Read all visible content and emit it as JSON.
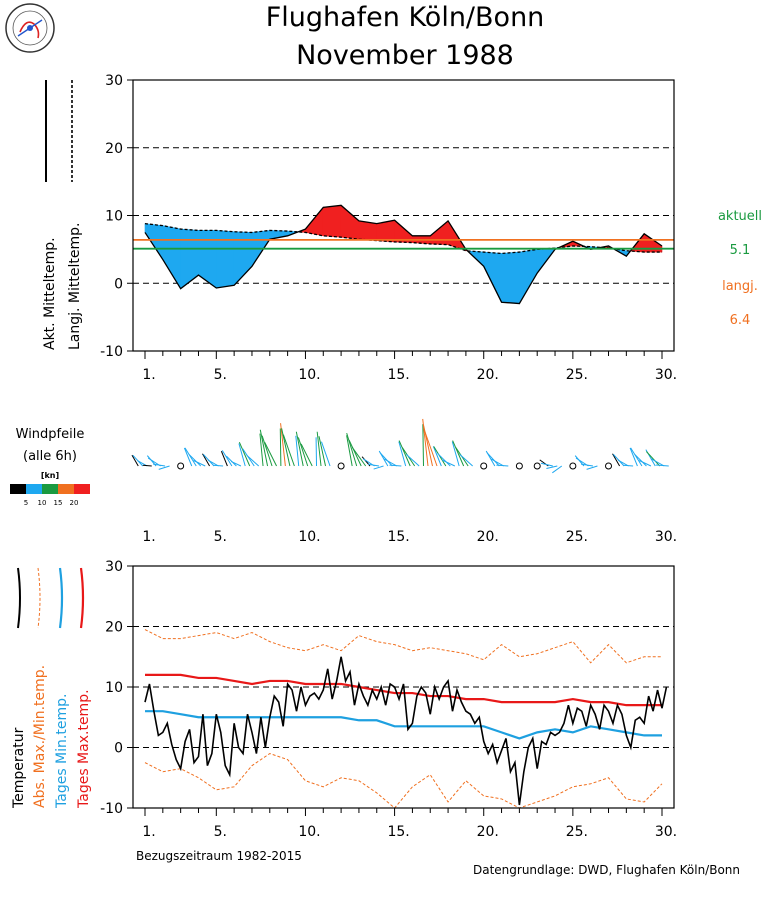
{
  "title": {
    "line1": "Flughafen Köln/Bonn",
    "line2": "November  1988"
  },
  "colors": {
    "cold_fill": "#1EA8F0",
    "warm_fill": "#F02020",
    "aktuell": "#1A9A40",
    "langj": "#F07020",
    "abs_extreme": "#F07020",
    "tages_min": "#1EA0E0",
    "tages_max": "#E81818",
    "temperature": "#000000"
  },
  "legend_top": {
    "akt_label": "Akt. Mitteltemp.",
    "langj_label": "Langj. Mitteltemp."
  },
  "side_values": {
    "aktuell_label": "aktuell",
    "aktuell_value": "5.1",
    "langj_label": "langj.",
    "langj_value": "6.4"
  },
  "wind": {
    "title_line1": "Windpfeile",
    "title_line2": "(alle 6h)",
    "unit": "[kn]",
    "scale_labels": [
      "5",
      "10",
      "15",
      "20"
    ],
    "scale_colors": [
      "#000000",
      "#1EA8F0",
      "#1A9A40",
      "#F07020",
      "#F02020"
    ]
  },
  "legend_bottom": {
    "temperatur": "Temperatur",
    "abs": "Abs. Max./Min.temp.",
    "tmin": "Tages Min.temp.",
    "tmax": "Tages Max.temp."
  },
  "footer": {
    "reference": "Bezugszeitraum 1982-2015",
    "source": "Datengrundlage: DWD, Flughafen Köln/Bonn"
  },
  "chart_data": [
    {
      "type": "area",
      "name": "Tagesmitteltemperatur",
      "x": [
        1,
        2,
        3,
        4,
        5,
        6,
        7,
        8,
        9,
        10,
        11,
        12,
        13,
        14,
        15,
        16,
        17,
        18,
        19,
        20,
        21,
        22,
        23,
        24,
        25,
        26,
        27,
        28,
        29,
        30
      ],
      "series": [
        {
          "name": "Akt. Mitteltemp.",
          "values": [
            7.5,
            3.5,
            -0.8,
            1.2,
            -0.7,
            -0.3,
            2.5,
            6.5,
            7.0,
            8.0,
            11.2,
            11.5,
            9.2,
            8.8,
            9.3,
            7.0,
            7.0,
            9.2,
            5.0,
            2.5,
            -2.8,
            -3.0,
            1.5,
            5.0,
            6.2,
            5.0,
            5.5,
            4.0,
            7.3,
            5.5
          ]
        },
        {
          "name": "Langj. Mitteltemp.",
          "values": [
            8.8,
            8.5,
            8.0,
            7.8,
            7.8,
            7.6,
            7.5,
            7.8,
            7.7,
            7.5,
            7.0,
            6.8,
            6.5,
            6.3,
            6.1,
            6.0,
            5.8,
            5.7,
            4.8,
            4.6,
            4.4,
            4.6,
            5.0,
            5.2,
            5.5,
            5.4,
            5.2,
            4.8,
            4.6,
            4.6
          ]
        }
      ],
      "xticks": [
        "1.",
        "5.",
        "10.",
        "15.",
        "20.",
        "25.",
        "30."
      ],
      "yticks": [
        "-10",
        "0",
        "10",
        "20",
        "30"
      ],
      "ylim": [
        -10,
        30
      ],
      "reference_lines": [
        {
          "label": "aktuell",
          "value": 5.1
        },
        {
          "label": "langj.",
          "value": 6.4
        }
      ],
      "grid": "dashed horizontal"
    },
    {
      "type": "scatter",
      "name": "Windpfeile",
      "x": [
        1,
        2,
        3,
        4,
        5,
        6,
        7,
        8,
        9,
        10,
        11,
        12,
        13,
        14,
        15,
        16,
        17,
        18,
        19,
        20,
        21,
        22,
        23,
        24,
        25,
        26,
        27,
        28,
        29,
        30
      ],
      "speed_kn": [
        5,
        7,
        0,
        8,
        6,
        6,
        9,
        12,
        14,
        11,
        10,
        0,
        12,
        6,
        8,
        10,
        16,
        9,
        10,
        0,
        8,
        0,
        0,
        6,
        0,
        7,
        0,
        6,
        8,
        9
      ],
      "direction_deg": [
        250,
        260,
        0,
        240,
        250,
        240,
        230,
        210,
        200,
        210,
        200,
        0,
        220,
        260,
        250,
        230,
        200,
        240,
        230,
        0,
        250,
        0,
        0,
        270,
        0,
        260,
        0,
        250,
        240,
        250
      ],
      "xticks": [
        "1.",
        "5.",
        "10.",
        "15.",
        "20.",
        "25.",
        "30."
      ]
    },
    {
      "type": "line",
      "name": "Temperatur",
      "x_temp": [
        1,
        1.25,
        1.5,
        1.75,
        2,
        2.25,
        2.5,
        2.75,
        3,
        3.25,
        3.5,
        3.75,
        4,
        4.25,
        4.5,
        4.75,
        5,
        5.25,
        5.5,
        5.75,
        6,
        6.25,
        6.5,
        6.75,
        7,
        7.25,
        7.5,
        7.75,
        8,
        8.25,
        8.5,
        8.75,
        9,
        9.25,
        9.5,
        9.75,
        10,
        10.25,
        10.5,
        10.75,
        11,
        11.25,
        11.5,
        11.75,
        12,
        12.25,
        12.5,
        12.75,
        13,
        13.25,
        13.5,
        13.75,
        14,
        14.25,
        14.5,
        14.75,
        15,
        15.25,
        15.5,
        15.75,
        16,
        16.25,
        16.5,
        16.75,
        17,
        17.25,
        17.5,
        17.75,
        18,
        18.25,
        18.5,
        18.75,
        19,
        19.25,
        19.5,
        19.75,
        20,
        20.25,
        20.5,
        20.75,
        21,
        21.25,
        21.5,
        21.75,
        22,
        22.25,
        22.5,
        22.75,
        23,
        23.25,
        23.5,
        23.75,
        24,
        24.25,
        24.5,
        24.75,
        25,
        25.25,
        25.5,
        25.75,
        26,
        26.25,
        26.5,
        26.75,
        27,
        27.25,
        27.5,
        27.75,
        28,
        28.25,
        28.5,
        28.75,
        29,
        29.25,
        29.5,
        29.75,
        30,
        30.25
      ],
      "temperature": [
        7.5,
        10.5,
        6.0,
        2.0,
        2.5,
        4.0,
        0.5,
        -2.0,
        -3.5,
        1.0,
        3.0,
        -2.5,
        -1.5,
        5.5,
        -3.0,
        -1.0,
        5.5,
        2.5,
        -3.0,
        -4.5,
        4.0,
        0.0,
        -1.0,
        5.5,
        2.5,
        -1.0,
        5.0,
        0.0,
        5.0,
        8.5,
        7.5,
        3.5,
        10.5,
        9.5,
        6.0,
        10.0,
        7.0,
        8.5,
        9.0,
        8.0,
        9.5,
        13.0,
        8.0,
        11.0,
        15.0,
        11.0,
        12.5,
        7.0,
        10.5,
        8.5,
        7.0,
        9.5,
        8.0,
        10.0,
        7.0,
        10.5,
        10.0,
        8.0,
        10.5,
        3.0,
        4.0,
        8.5,
        10.0,
        9.0,
        5.5,
        10.0,
        8.0,
        10.0,
        11.0,
        6.0,
        9.5,
        7.5,
        6.0,
        5.5,
        4.0,
        5.0,
        1.0,
        -1.0,
        0.5,
        -2.5,
        -0.5,
        1.5,
        -4.0,
        -2.5,
        -9.5,
        -4.0,
        0.0,
        1.5,
        -3.5,
        1.0,
        0.5,
        2.5,
        2.0,
        2.5,
        4.0,
        7.0,
        4.0,
        6.5,
        6.0,
        3.5,
        7.0,
        5.5,
        3.0,
        7.0,
        6.0,
        4.0,
        7.0,
        5.5,
        2.0,
        0.0,
        4.5,
        5.0,
        4.0,
        8.5,
        6.0,
        9.5,
        6.5,
        10.0,
        10.5,
        9.0
      ],
      "x_daily": [
        1,
        2,
        3,
        4,
        5,
        6,
        7,
        8,
        9,
        10,
        11,
        12,
        13,
        14,
        15,
        16,
        17,
        18,
        19,
        20,
        21,
        22,
        23,
        24,
        25,
        26,
        27,
        28,
        29,
        30
      ],
      "series": [
        {
          "name": "Abs. Max.temp.",
          "values": [
            19.5,
            18.0,
            18.0,
            18.5,
            19.0,
            18.0,
            19.0,
            17.5,
            16.5,
            16.0,
            17.0,
            16.0,
            18.5,
            17.5,
            17.0,
            16.0,
            16.5,
            16.0,
            15.5,
            14.5,
            17.0,
            15.0,
            15.5,
            16.5,
            17.5,
            14.0,
            17.0,
            14.0,
            15.0,
            15.0
          ]
        },
        {
          "name": "Abs. Min.temp.",
          "values": [
            -2.5,
            -4.0,
            -3.5,
            -5.0,
            -7.0,
            -6.5,
            -3.0,
            -1.0,
            -2.0,
            -5.5,
            -6.5,
            -5.0,
            -5.5,
            -7.5,
            -10.0,
            -6.5,
            -4.5,
            -9.0,
            -5.5,
            -8.0,
            -8.5,
            -10.0,
            -9.0,
            -8.0,
            -6.5,
            -6.0,
            -5.0,
            -8.5,
            -9.0,
            -6.0
          ]
        },
        {
          "name": "Tages Max.temp.",
          "values": [
            12.0,
            12.0,
            12.0,
            11.5,
            11.5,
            11.0,
            10.5,
            11.0,
            11.0,
            10.5,
            10.5,
            10.5,
            10.0,
            9.5,
            9.0,
            9.0,
            8.5,
            8.5,
            8.0,
            8.0,
            7.5,
            7.5,
            7.5,
            7.5,
            8.0,
            7.5,
            7.5,
            7.0,
            7.0,
            7.0
          ]
        },
        {
          "name": "Tages Min.temp.",
          "values": [
            6.0,
            6.0,
            5.5,
            5.0,
            5.0,
            5.0,
            5.0,
            5.0,
            5.0,
            5.0,
            5.0,
            5.0,
            4.5,
            4.5,
            3.5,
            3.5,
            3.5,
            3.5,
            3.5,
            3.5,
            2.5,
            1.5,
            2.5,
            3.0,
            2.5,
            3.5,
            3.0,
            2.5,
            2.0,
            2.0
          ]
        }
      ],
      "xticks": [
        "1.",
        "5.",
        "10.",
        "15.",
        "20.",
        "25.",
        "30."
      ],
      "yticks": [
        "-10",
        "0",
        "10",
        "20",
        "30"
      ],
      "ylim": [
        -10,
        30
      ],
      "grid": "dashed horizontal"
    }
  ]
}
